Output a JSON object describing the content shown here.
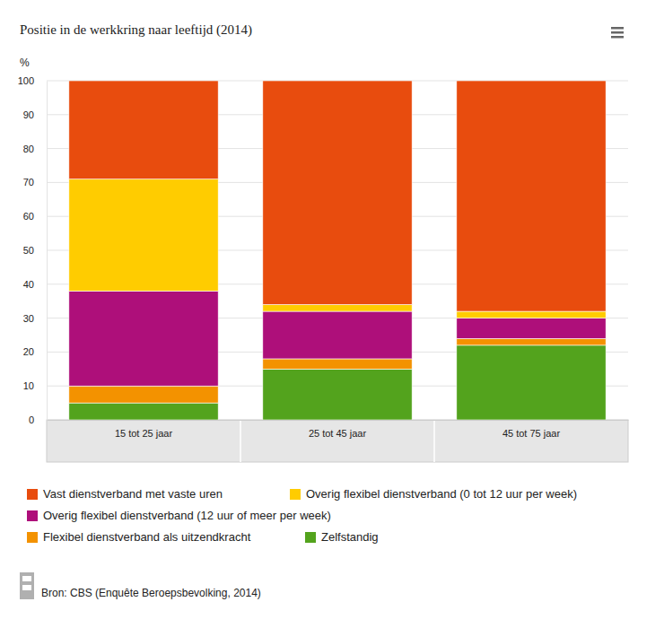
{
  "chart_data": {
    "type": "bar",
    "stacked": true,
    "title": "Positie in de werkkring naar leeftijd (2014)",
    "ylabel": "%",
    "source": "Bron: CBS (Enquête Beroepsbevolking, 2014)",
    "categories": [
      "15 tot 25 jaar",
      "25 tot 45 jaar",
      "45 tot 75 jaar"
    ],
    "series": [
      {
        "name": "Vast dienstverband met vaste uren",
        "color": "#e84c0e",
        "values": [
          29,
          66,
          68
        ]
      },
      {
        "name": "Overig flexibel dienstverband (0 tot 12 uur per week)",
        "color": "#ffcc00",
        "values": [
          33,
          2,
          2
        ]
      },
      {
        "name": "Overig flexibel dienstverband (12 uur of meer per week)",
        "color": "#ae0f7a",
        "values": [
          28,
          14,
          6
        ]
      },
      {
        "name": "Flexibel dienstverband als uitzendkracht",
        "color": "#f39200",
        "values": [
          5,
          3,
          2
        ]
      },
      {
        "name": "Zelfstandig",
        "color": "#53a31d",
        "values": [
          5,
          15,
          22
        ]
      }
    ],
    "ylim": [
      0,
      100
    ],
    "yticks": [
      0,
      10,
      20,
      30,
      40,
      50,
      60,
      70,
      80,
      90,
      100
    ],
    "grid": true,
    "legend": "bottom"
  }
}
